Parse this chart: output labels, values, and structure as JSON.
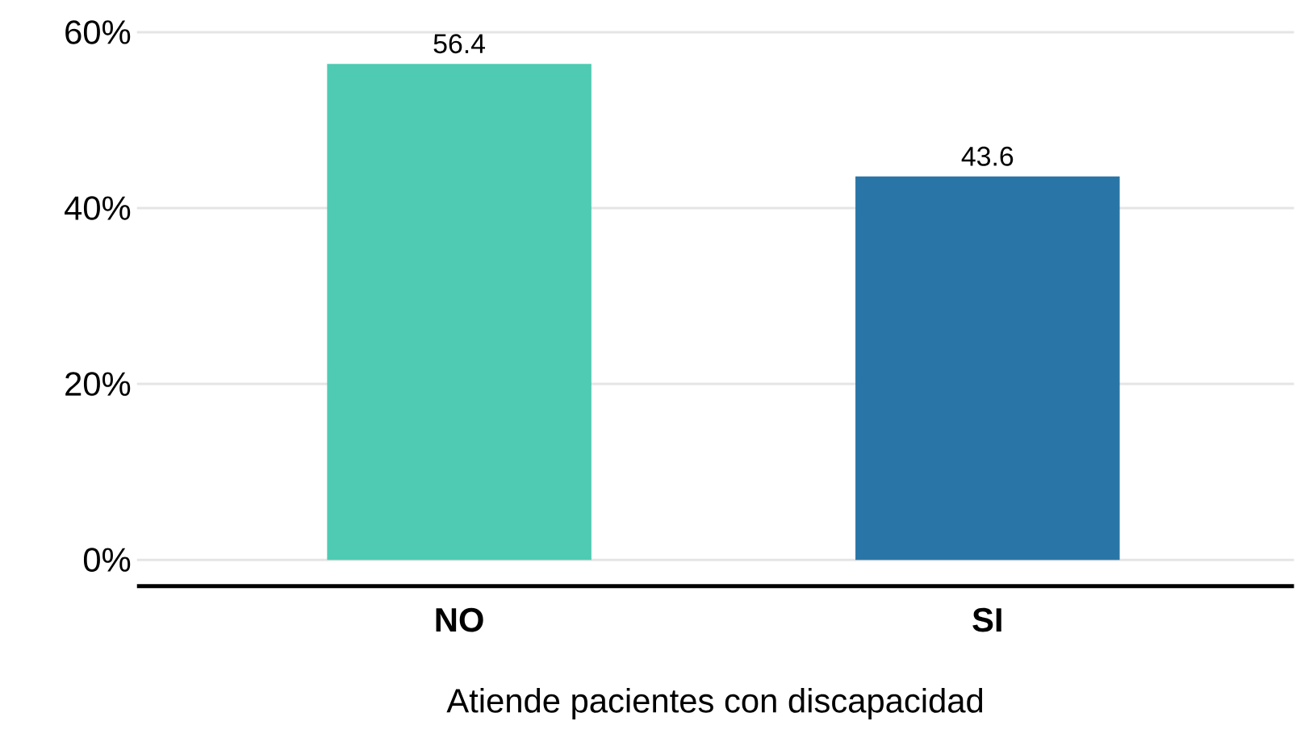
{
  "chart_data": {
    "type": "bar",
    "xlabel": "Atiende pacientes con discapacidad",
    "categories": [
      "NO",
      "SI"
    ],
    "values": [
      56.4,
      43.6
    ],
    "colors": [
      "#4ecbb2",
      "#2a75a7"
    ],
    "data_labels": true,
    "ylim": [
      -3,
      60
    ],
    "yticks": [
      {
        "value": 0,
        "label": "0%"
      },
      {
        "value": 20,
        "label": "20%"
      },
      {
        "value": 40,
        "label": "40%"
      },
      {
        "value": 60,
        "label": "60%"
      }
    ],
    "grid": "y"
  }
}
